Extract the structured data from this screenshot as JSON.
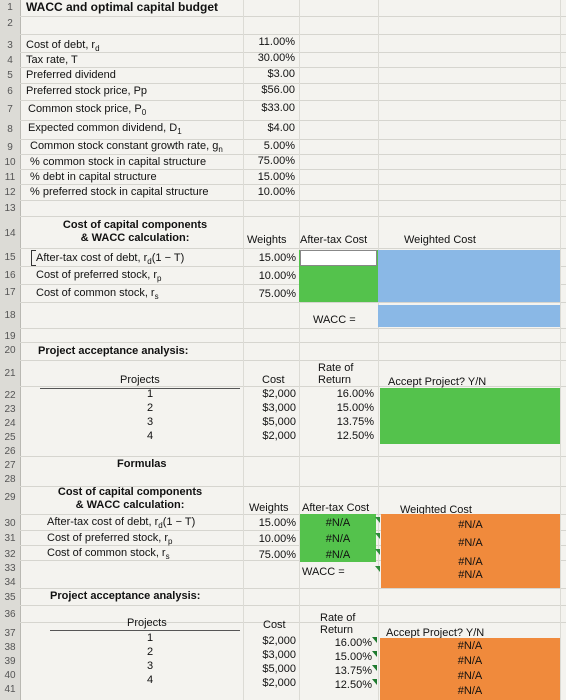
{
  "title": "WACC and optimal capital budget",
  "row_numbers": [
    "1",
    "2",
    "3",
    "4",
    "5",
    "6",
    "7",
    "8",
    "9",
    "10",
    "11",
    "12",
    "13",
    "14",
    "15",
    "16",
    "17",
    "18",
    "19",
    "20",
    "21",
    "22",
    "23",
    "24",
    "25",
    "26",
    "27",
    "28",
    "29",
    "30",
    "31",
    "32",
    "33",
    "34",
    "35",
    "36",
    "37",
    "38",
    "39",
    "40",
    "41"
  ],
  "inputs": {
    "items": [
      {
        "label": "Cost of debt, r",
        "sub": "d",
        "value": "11.00%"
      },
      {
        "label": "Tax rate, T",
        "sub": "",
        "value": "30.00%"
      },
      {
        "label": "Preferred dividend",
        "sub": "",
        "value": "$3.00"
      },
      {
        "label": "Preferred stock price, Pp",
        "sub": "",
        "value": "$56.00"
      },
      {
        "label": "Common stock price, P",
        "sub": "0",
        "value": "$33.00"
      },
      {
        "label": "Expected common dividend, D",
        "sub": "1",
        "value": "$4.00"
      },
      {
        "label": "Common stock constant growth rate, g",
        "sub": "n",
        "value": "5.00%"
      },
      {
        "label": "% common stock in capital structure",
        "sub": "",
        "value": "75.00%"
      },
      {
        "label": "% debt in capital structure",
        "sub": "",
        "value": "15.00%"
      },
      {
        "label": "% preferred stock in capital structure",
        "sub": "",
        "value": "10.00%"
      }
    ]
  },
  "section1": {
    "heading1": "Cost of capital components",
    "heading2": "& WACC calculation:",
    "col_weights": "Weights",
    "col_aftertax": "After-tax Cost",
    "col_weighted": "Weighted Cost",
    "rows": [
      {
        "label": "After-tax cost of debt, r",
        "sub": "d",
        "suffix": "(1 − T)",
        "weight": "15.00%"
      },
      {
        "label": "Cost of preferred stock, r",
        "sub": "p",
        "suffix": "",
        "weight": "10.00%"
      },
      {
        "label": "Cost of common stock, r",
        "sub": "s",
        "suffix": "",
        "weight": "75.00%"
      }
    ],
    "wacc_label": "WACC ="
  },
  "projects1": {
    "heading": "Project acceptance analysis:",
    "col_projects": "Projects",
    "col_cost": "Cost",
    "col_rate1": "Rate of",
    "col_rate2": "Return",
    "col_accept": "Accept Project? Y/N",
    "rows": [
      {
        "project": "1",
        "cost": "$2,000",
        "rate": "16.00%"
      },
      {
        "project": "2",
        "cost": "$3,000",
        "rate": "15.00%"
      },
      {
        "project": "3",
        "cost": "$5,000",
        "rate": "13.75%"
      },
      {
        "project": "4",
        "cost": "$2,000",
        "rate": "12.50%"
      }
    ]
  },
  "formulas_heading": "Formulas",
  "section2": {
    "heading1": "Cost of capital components",
    "heading2": "& WACC calculation:",
    "col_weights": "Weights",
    "col_aftertax": "After-tax Cost",
    "col_weighted": "Weighted Cost",
    "rows": [
      {
        "label": "After-tax cost of debt, r",
        "sub": "d",
        "suffix": "(1 − T)",
        "weight": "15.00%",
        "aftertax": "#N/A",
        "weighted": "#N/A"
      },
      {
        "label": "Cost of preferred stock, r",
        "sub": "p",
        "suffix": "",
        "weight": "10.00%",
        "aftertax": "#N/A",
        "weighted": "#N/A"
      },
      {
        "label": "Cost of common stock, r",
        "sub": "s",
        "suffix": "",
        "weight": "75.00%",
        "aftertax": "#N/A",
        "weighted": "#N/A"
      }
    ],
    "wacc_label": "WACC =",
    "wacc_value": "#N/A"
  },
  "projects2": {
    "heading": "Project acceptance analysis:",
    "col_projects": "Projects",
    "col_cost": "Cost",
    "col_rate1": "Rate of",
    "col_rate2": "Return",
    "col_accept": "Accept Project? Y/N",
    "rows": [
      {
        "project": "1",
        "cost": "$2,000",
        "rate": "16.00%",
        "accept": "#N/A"
      },
      {
        "project": "2",
        "cost": "$3,000",
        "rate": "15.00%",
        "accept": "#N/A"
      },
      {
        "project": "3",
        "cost": "$5,000",
        "rate": "13.75%",
        "accept": "#N/A"
      },
      {
        "project": "4",
        "cost": "$2,000",
        "rate": "12.50%",
        "accept": "#N/A"
      }
    ]
  },
  "colors": {
    "blue": "#8ab8e6",
    "green": "#54c24c",
    "orange": "#f08a3c"
  }
}
